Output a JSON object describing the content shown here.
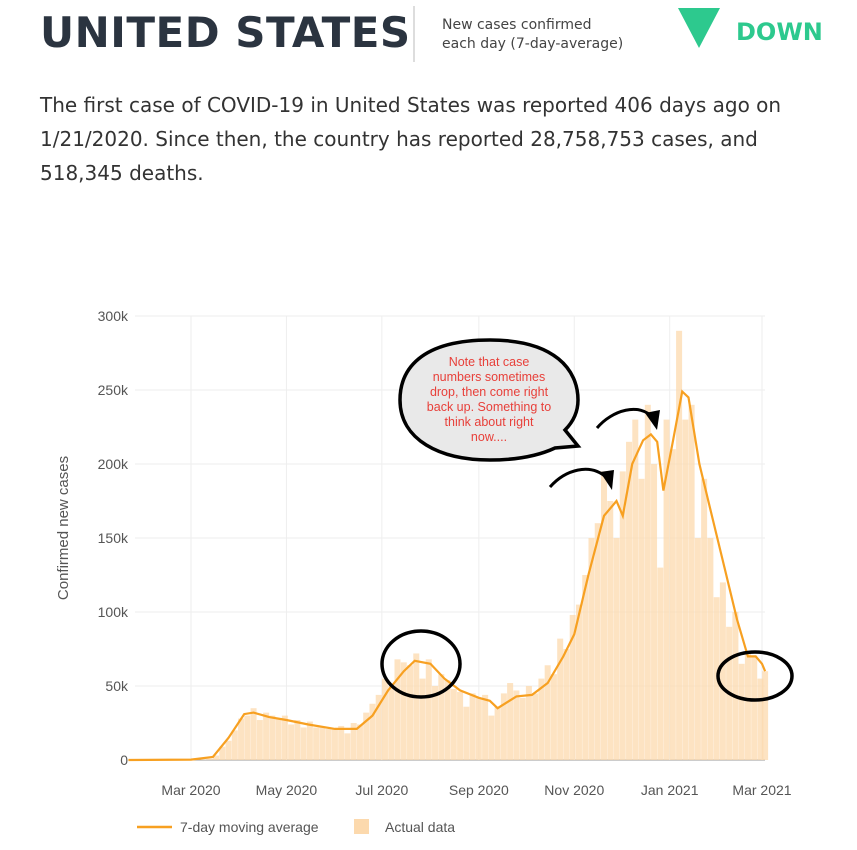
{
  "header": {
    "title": "UNITED STATES",
    "subtitle_line1": "New cases confirmed",
    "subtitle_line2": "each day (7-day-average)",
    "trend_label": "DOWN",
    "trend_icon": "triangle-down-icon",
    "trend_color": "#2dc98e"
  },
  "summary": "The first case of COVID-19 in United States was reported 406 days ago on 1/21/2020. Since then, the country has reported 28,758,753 cases, and 518,345 deaths.",
  "annotation": {
    "lines": [
      "Note that case",
      "numbers sometimes",
      "drop, then come right",
      "back up. Something to",
      "think about right",
      "now...."
    ]
  },
  "chart_data": {
    "type": "bar+line",
    "ylabel": "Confirmed new cases",
    "ylim": [
      0,
      300000
    ],
    "yticks": [
      {
        "v": 0,
        "label": "0"
      },
      {
        "v": 50000,
        "label": "50k"
      },
      {
        "v": 100000,
        "label": "100k"
      },
      {
        "v": 150000,
        "label": "150k"
      },
      {
        "v": 200000,
        "label": "200k"
      },
      {
        "v": 250000,
        "label": "250k"
      },
      {
        "v": 300000,
        "label": "300k"
      }
    ],
    "xticks": [
      {
        "d": "2020-03-01",
        "label": "Mar 2020"
      },
      {
        "d": "2020-05-01",
        "label": "May 2020"
      },
      {
        "d": "2020-07-01",
        "label": "Jul 2020"
      },
      {
        "d": "2020-09-01",
        "label": "Sep 2020"
      },
      {
        "d": "2020-11-01",
        "label": "Nov 2020"
      },
      {
        "d": "2021-01-01",
        "label": "Jan 2021"
      },
      {
        "d": "2021-03-01",
        "label": "Mar 2021"
      }
    ],
    "grid": true,
    "legend_position": "bottom-left",
    "series": [
      {
        "name": "7-day moving average",
        "color": "#f7a021",
        "points": [
          [
            "2020-01-21",
            0
          ],
          [
            "2020-03-01",
            300
          ],
          [
            "2020-03-15",
            2000
          ],
          [
            "2020-03-25",
            15000
          ],
          [
            "2020-04-04",
            31000
          ],
          [
            "2020-04-10",
            32000
          ],
          [
            "2020-04-20",
            29000
          ],
          [
            "2020-05-01",
            27000
          ],
          [
            "2020-05-15",
            24000
          ],
          [
            "2020-06-01",
            21000
          ],
          [
            "2020-06-15",
            21000
          ],
          [
            "2020-06-25",
            30000
          ],
          [
            "2020-07-05",
            47000
          ],
          [
            "2020-07-15",
            60000
          ],
          [
            "2020-07-22",
            67000
          ],
          [
            "2020-08-01",
            65000
          ],
          [
            "2020-08-10",
            55000
          ],
          [
            "2020-08-20",
            47000
          ],
          [
            "2020-09-01",
            42000
          ],
          [
            "2020-09-08",
            40000
          ],
          [
            "2020-09-13",
            35000
          ],
          [
            "2020-09-25",
            43000
          ],
          [
            "2020-10-05",
            44000
          ],
          [
            "2020-10-15",
            52000
          ],
          [
            "2020-10-25",
            70000
          ],
          [
            "2020-11-01",
            85000
          ],
          [
            "2020-11-10",
            125000
          ],
          [
            "2020-11-20",
            165000
          ],
          [
            "2020-11-28",
            175000
          ],
          [
            "2020-12-02",
            165000
          ],
          [
            "2020-12-08",
            200000
          ],
          [
            "2020-12-15",
            216000
          ],
          [
            "2020-12-20",
            220000
          ],
          [
            "2020-12-24",
            215000
          ],
          [
            "2020-12-28",
            182000
          ],
          [
            "2021-01-03",
            215000
          ],
          [
            "2021-01-09",
            249000
          ],
          [
            "2021-01-13",
            245000
          ],
          [
            "2021-01-20",
            200000
          ],
          [
            "2021-01-28",
            165000
          ],
          [
            "2021-02-05",
            130000
          ],
          [
            "2021-02-13",
            95000
          ],
          [
            "2021-02-20",
            70000
          ],
          [
            "2021-02-25",
            70000
          ],
          [
            "2021-03-01",
            65000
          ],
          [
            "2021-03-03",
            60000
          ]
        ]
      },
      {
        "name": "Actual data",
        "color": "#fcd9ad",
        "points": [
          [
            "2020-03-05",
            100
          ],
          [
            "2020-03-09",
            300
          ],
          [
            "2020-03-13",
            800
          ],
          [
            "2020-03-17",
            3000
          ],
          [
            "2020-03-21",
            9000
          ],
          [
            "2020-03-25",
            13000
          ],
          [
            "2020-03-29",
            20000
          ],
          [
            "2020-04-02",
            28000
          ],
          [
            "2020-04-06",
            30000
          ],
          [
            "2020-04-10",
            35000
          ],
          [
            "2020-04-14",
            27000
          ],
          [
            "2020-04-18",
            32000
          ],
          [
            "2020-04-22",
            30000
          ],
          [
            "2020-04-26",
            28000
          ],
          [
            "2020-04-30",
            30000
          ],
          [
            "2020-05-04",
            24000
          ],
          [
            "2020-05-08",
            27000
          ],
          [
            "2020-05-12",
            22000
          ],
          [
            "2020-05-16",
            26000
          ],
          [
            "2020-05-20",
            22000
          ],
          [
            "2020-05-24",
            22000
          ],
          [
            "2020-05-28",
            21000
          ],
          [
            "2020-06-01",
            21000
          ],
          [
            "2020-06-05",
            23000
          ],
          [
            "2020-06-09",
            18000
          ],
          [
            "2020-06-13",
            25000
          ],
          [
            "2020-06-17",
            24000
          ],
          [
            "2020-06-21",
            32000
          ],
          [
            "2020-06-25",
            38000
          ],
          [
            "2020-06-29",
            44000
          ],
          [
            "2020-07-03",
            55000
          ],
          [
            "2020-07-07",
            50000
          ],
          [
            "2020-07-11",
            68000
          ],
          [
            "2020-07-15",
            66000
          ],
          [
            "2020-07-19",
            64000
          ],
          [
            "2020-07-23",
            72000
          ],
          [
            "2020-07-27",
            55000
          ],
          [
            "2020-07-31",
            68000
          ],
          [
            "2020-08-04",
            50000
          ],
          [
            "2020-08-08",
            58000
          ],
          [
            "2020-08-12",
            54000
          ],
          [
            "2020-08-16",
            48000
          ],
          [
            "2020-08-20",
            46000
          ],
          [
            "2020-08-24",
            36000
          ],
          [
            "2020-08-28",
            45000
          ],
          [
            "2020-09-01",
            42000
          ],
          [
            "2020-09-05",
            44000
          ],
          [
            "2020-09-09",
            30000
          ],
          [
            "2020-09-13",
            36000
          ],
          [
            "2020-09-17",
            45000
          ],
          [
            "2020-09-21",
            52000
          ],
          [
            "2020-09-25",
            47000
          ],
          [
            "2020-09-29",
            42000
          ],
          [
            "2020-10-03",
            50000
          ],
          [
            "2020-10-07",
            45000
          ],
          [
            "2020-10-11",
            55000
          ],
          [
            "2020-10-15",
            64000
          ],
          [
            "2020-10-19",
            58000
          ],
          [
            "2020-10-23",
            82000
          ],
          [
            "2020-10-27",
            75000
          ],
          [
            "2020-10-31",
            98000
          ],
          [
            "2020-11-04",
            105000
          ],
          [
            "2020-11-08",
            125000
          ],
          [
            "2020-11-12",
            150000
          ],
          [
            "2020-11-16",
            160000
          ],
          [
            "2020-11-20",
            195000
          ],
          [
            "2020-11-24",
            175000
          ],
          [
            "2020-11-28",
            150000
          ],
          [
            "2020-12-02",
            195000
          ],
          [
            "2020-12-06",
            215000
          ],
          [
            "2020-12-10",
            230000
          ],
          [
            "2020-12-14",
            190000
          ],
          [
            "2020-12-18",
            240000
          ],
          [
            "2020-12-22",
            200000
          ],
          [
            "2020-12-26",
            130000
          ],
          [
            "2020-12-30",
            230000
          ],
          [
            "2021-01-03",
            210000
          ],
          [
            "2021-01-07",
            290000
          ],
          [
            "2021-01-11",
            230000
          ],
          [
            "2021-01-15",
            240000
          ],
          [
            "2021-01-19",
            150000
          ],
          [
            "2021-01-23",
            190000
          ],
          [
            "2021-01-27",
            150000
          ],
          [
            "2021-01-31",
            110000
          ],
          [
            "2021-02-04",
            120000
          ],
          [
            "2021-02-08",
            90000
          ],
          [
            "2021-02-12",
            100000
          ],
          [
            "2021-02-16",
            65000
          ],
          [
            "2021-02-20",
            72000
          ],
          [
            "2021-02-24",
            70000
          ],
          [
            "2021-02-28",
            55000
          ],
          [
            "2021-03-03",
            60000
          ]
        ]
      }
    ]
  }
}
